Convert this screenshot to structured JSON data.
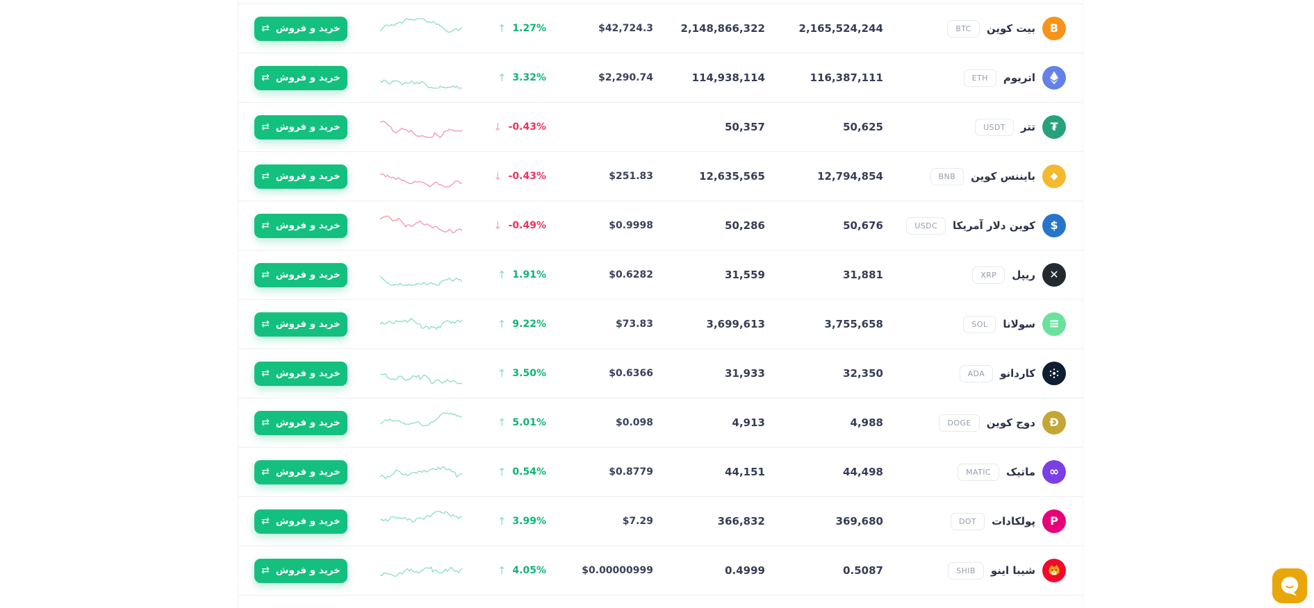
{
  "buy_button": {
    "label": "خرید و فروش",
    "icon": "swap-arrows-icon"
  },
  "colors": {
    "buy_button_green": "#14c07e",
    "percent_up": "#10b377",
    "percent_down": "#f0325e",
    "sparkline_up": "#8ae0bb",
    "sparkline_down": "#f295aa",
    "row_divider": "#edeff3",
    "chat_widget_yellow": "#e9a60b"
  },
  "coins": [
    {
      "name": "بیت کوین",
      "symbol": "BTC",
      "icon": "btc",
      "icon_bg": "#f7931a",
      "trend": "up",
      "change": "1.27%",
      "usd_price": "$42,724.3",
      "value_mid": "2,148,866,322",
      "value_right": "2,165,524,244"
    },
    {
      "name": "اتریوم",
      "symbol": "ETH",
      "icon": "eth",
      "icon_bg": "#6481e7",
      "trend": "up",
      "change": "3.32%",
      "usd_price": "$2,290.74",
      "value_mid": "114,938,114",
      "value_right": "116,387,111"
    },
    {
      "name": "تتر",
      "symbol": "USDT",
      "icon": "usdt",
      "icon_bg": "#26a17b",
      "trend": "down",
      "change": "-0.43%",
      "usd_price": "",
      "value_mid": "50,357",
      "value_right": "50,625"
    },
    {
      "name": "بایننس کوین",
      "symbol": "BNB",
      "icon": "bnb",
      "icon_bg": "#f3ba2f",
      "trend": "down",
      "change": "-0.43%",
      "usd_price": "$251.83",
      "value_mid": "12,635,565",
      "value_right": "12,794,854"
    },
    {
      "name": "کوین دلار آمریکا",
      "symbol": "USDC",
      "icon": "usdc",
      "icon_bg": "#2775ca",
      "trend": "down",
      "change": "-0.49%",
      "usd_price": "$0.9998",
      "value_mid": "50,286",
      "value_right": "50,676"
    },
    {
      "name": "ریپل",
      "symbol": "XRP",
      "icon": "xrp",
      "icon_bg": "#23292f",
      "trend": "up",
      "change": "1.91%",
      "usd_price": "$0.6282",
      "value_mid": "31,559",
      "value_right": "31,881"
    },
    {
      "name": "سولانا",
      "symbol": "SOL",
      "icon": "sol",
      "icon_bg": "#69e29c",
      "trend": "up",
      "change": "9.22%",
      "usd_price": "$73.83",
      "value_mid": "3,699,613",
      "value_right": "3,755,658"
    },
    {
      "name": "کاردانو",
      "symbol": "ADA",
      "icon": "ada",
      "icon_bg": "#0e1e33",
      "trend": "up",
      "change": "3.50%",
      "usd_price": "$0.6366",
      "value_mid": "31,933",
      "value_right": "32,350"
    },
    {
      "name": "دوج کوین",
      "symbol": "DOGE",
      "icon": "doge",
      "icon_bg": "#c3a634",
      "trend": "up",
      "change": "5.01%",
      "usd_price": "$0.098",
      "value_mid": "4,913",
      "value_right": "4,988"
    },
    {
      "name": "ماتیک",
      "symbol": "MATIC",
      "icon": "matic",
      "icon_bg": "#7b3fe4",
      "trend": "up",
      "change": "0.54%",
      "usd_price": "$0.8779",
      "value_mid": "44,151",
      "value_right": "44,498"
    },
    {
      "name": "پولکادات",
      "symbol": "DOT",
      "icon": "dot",
      "icon_bg": "#e6007a",
      "trend": "up",
      "change": "3.99%",
      "usd_price": "$7.29",
      "value_mid": "366,832",
      "value_right": "369,680"
    },
    {
      "name": "شیبا اینو",
      "symbol": "SHIB",
      "icon": "shib",
      "icon_bg": "#f20a2a",
      "trend": "up",
      "change": "4.05%",
      "usd_price": "$0.00000999",
      "value_mid": "0.4999",
      "value_right": "0.5087"
    }
  ]
}
